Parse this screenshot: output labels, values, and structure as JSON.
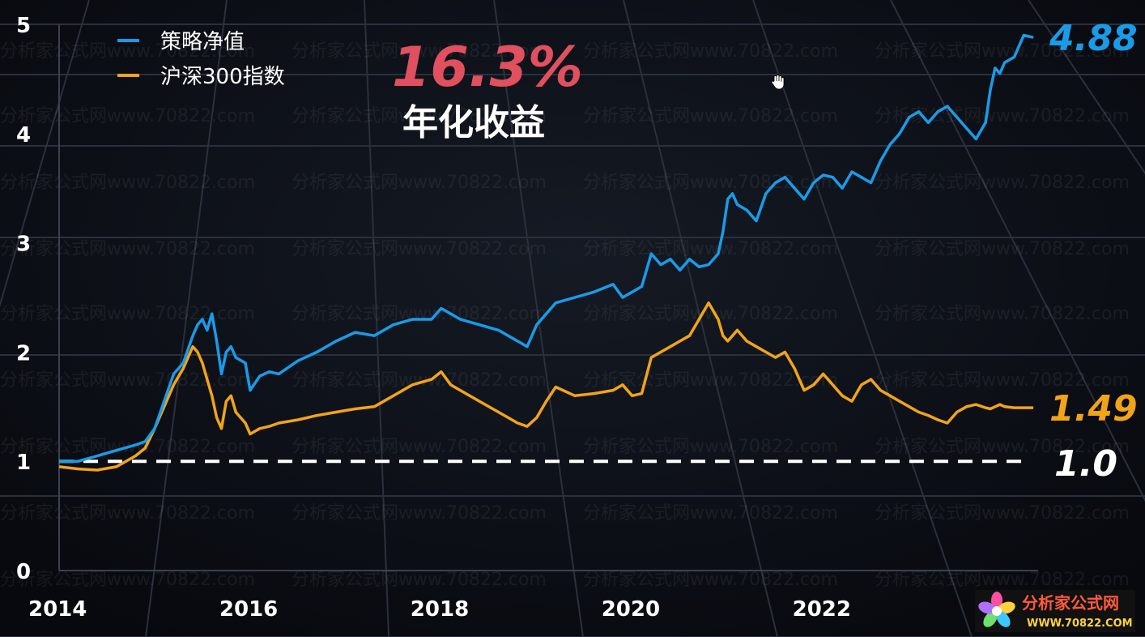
{
  "chart_data": {
    "type": "line",
    "title": "16.3%",
    "subtitle": "年化收益",
    "xlabel": "",
    "ylabel": "",
    "x_ticks": [
      "2014",
      "2016",
      "2018",
      "2020",
      "2022"
    ],
    "y_ticks": [
      "0",
      "1",
      "2",
      "3",
      "4",
      "5"
    ],
    "xlim": [
      2014.0,
      2024.25
    ],
    "ylim": [
      0,
      5
    ],
    "grid": true,
    "legend_position": "top-left",
    "baseline": {
      "value": 1.0,
      "label": "1.0"
    },
    "series": [
      {
        "name": "策略净值",
        "color": "#1a9be8",
        "end_label": "4.88",
        "x": [
          2014.0,
          2014.2,
          2014.4,
          2014.6,
          2014.8,
          2014.9,
          2015.0,
          2015.1,
          2015.2,
          2015.3,
          2015.4,
          2015.45,
          2015.5,
          2015.55,
          2015.6,
          2015.65,
          2015.7,
          2015.75,
          2015.8,
          2015.85,
          2015.95,
          2016.0,
          2016.1,
          2016.2,
          2016.3,
          2016.5,
          2016.7,
          2016.9,
          2017.1,
          2017.3,
          2017.5,
          2017.7,
          2017.9,
          2018.0,
          2018.1,
          2018.2,
          2018.4,
          2018.6,
          2018.8,
          2018.9,
          2019.0,
          2019.1,
          2019.2,
          2019.4,
          2019.6,
          2019.8,
          2019.9,
          2020.0,
          2020.1,
          2020.2,
          2020.3,
          2020.4,
          2020.5,
          2020.6,
          2020.7,
          2020.8,
          2020.9,
          2020.95,
          2021.0,
          2021.05,
          2021.1,
          2021.2,
          2021.3,
          2021.4,
          2021.5,
          2021.6,
          2021.7,
          2021.8,
          2021.9,
          2022.0,
          2022.1,
          2022.2,
          2022.3,
          2022.4,
          2022.5,
          2022.6,
          2022.7,
          2022.8,
          2022.9,
          2023.0,
          2023.1,
          2023.2,
          2023.3,
          2023.4,
          2023.5,
          2023.6,
          2023.7,
          2023.75,
          2023.8,
          2023.85,
          2023.9,
          2024.0,
          2024.1,
          2024.2
        ],
        "y": [
          1.0,
          1.0,
          1.05,
          1.1,
          1.15,
          1.18,
          1.3,
          1.55,
          1.8,
          1.9,
          2.15,
          2.25,
          2.3,
          2.2,
          2.35,
          2.1,
          1.8,
          2.0,
          2.05,
          1.95,
          1.9,
          1.65,
          1.78,
          1.82,
          1.8,
          1.92,
          2.0,
          2.1,
          2.18,
          2.15,
          2.25,
          2.3,
          2.3,
          2.4,
          2.35,
          2.3,
          2.25,
          2.2,
          2.1,
          2.05,
          2.25,
          2.35,
          2.45,
          2.5,
          2.55,
          2.62,
          2.5,
          2.55,
          2.6,
          2.9,
          2.8,
          2.85,
          2.75,
          2.85,
          2.78,
          2.8,
          2.9,
          3.1,
          3.4,
          3.45,
          3.35,
          3.3,
          3.2,
          3.45,
          3.55,
          3.6,
          3.5,
          3.4,
          3.55,
          3.62,
          3.6,
          3.5,
          3.65,
          3.6,
          3.55,
          3.75,
          3.9,
          4.0,
          4.15,
          4.2,
          4.1,
          4.2,
          4.25,
          4.15,
          4.05,
          3.95,
          4.1,
          4.4,
          4.6,
          4.55,
          4.65,
          4.7,
          4.9,
          4.88
        ]
      },
      {
        "name": "沪深300指数",
        "color": "#f2a418",
        "end_label": "1.49",
        "x": [
          2014.0,
          2014.2,
          2014.4,
          2014.6,
          2014.8,
          2014.9,
          2015.0,
          2015.1,
          2015.2,
          2015.3,
          2015.4,
          2015.45,
          2015.5,
          2015.55,
          2015.6,
          2015.65,
          2015.7,
          2015.75,
          2015.8,
          2015.85,
          2015.95,
          2016.0,
          2016.1,
          2016.2,
          2016.3,
          2016.5,
          2016.7,
          2016.9,
          2017.1,
          2017.3,
          2017.5,
          2017.7,
          2017.9,
          2018.0,
          2018.1,
          2018.2,
          2018.4,
          2018.6,
          2018.8,
          2018.9,
          2019.0,
          2019.1,
          2019.2,
          2019.4,
          2019.6,
          2019.8,
          2019.9,
          2020.0,
          2020.1,
          2020.2,
          2020.3,
          2020.4,
          2020.5,
          2020.6,
          2020.7,
          2020.8,
          2020.9,
          2020.95,
          2021.0,
          2021.05,
          2021.1,
          2021.2,
          2021.3,
          2021.4,
          2021.5,
          2021.6,
          2021.7,
          2021.8,
          2021.9,
          2022.0,
          2022.1,
          2022.2,
          2022.3,
          2022.4,
          2022.5,
          2022.6,
          2022.7,
          2022.8,
          2022.9,
          2023.0,
          2023.1,
          2023.2,
          2023.3,
          2023.4,
          2023.5,
          2023.6,
          2023.7,
          2023.75,
          2023.8,
          2023.85,
          2023.9,
          2024.0,
          2024.1,
          2024.2
        ],
        "y": [
          0.95,
          0.93,
          0.92,
          0.95,
          1.05,
          1.12,
          1.3,
          1.5,
          1.7,
          1.85,
          2.05,
          2.0,
          1.9,
          1.75,
          1.6,
          1.4,
          1.3,
          1.55,
          1.6,
          1.45,
          1.35,
          1.25,
          1.3,
          1.32,
          1.35,
          1.38,
          1.42,
          1.45,
          1.48,
          1.5,
          1.6,
          1.7,
          1.75,
          1.82,
          1.7,
          1.65,
          1.55,
          1.45,
          1.35,
          1.32,
          1.4,
          1.55,
          1.68,
          1.6,
          1.62,
          1.65,
          1.7,
          1.6,
          1.62,
          1.95,
          2.0,
          2.05,
          2.1,
          2.15,
          2.3,
          2.45,
          2.3,
          2.15,
          2.1,
          2.15,
          2.2,
          2.1,
          2.05,
          2.0,
          1.95,
          2.0,
          1.85,
          1.65,
          1.7,
          1.8,
          1.7,
          1.6,
          1.55,
          1.7,
          1.75,
          1.65,
          1.6,
          1.55,
          1.5,
          1.45,
          1.42,
          1.38,
          1.35,
          1.45,
          1.5,
          1.52,
          1.49,
          1.48,
          1.5,
          1.52,
          1.5,
          1.49,
          1.49,
          1.49
        ]
      }
    ]
  },
  "watermark": {
    "text": "分析家公式网www.70822.com"
  },
  "logo": {
    "title": "分析家公式网",
    "url": "WWW.70822.COM"
  },
  "icons": {
    "cursor": "hand-cursor-icon",
    "logo_mark": "flower-logo-icon"
  }
}
